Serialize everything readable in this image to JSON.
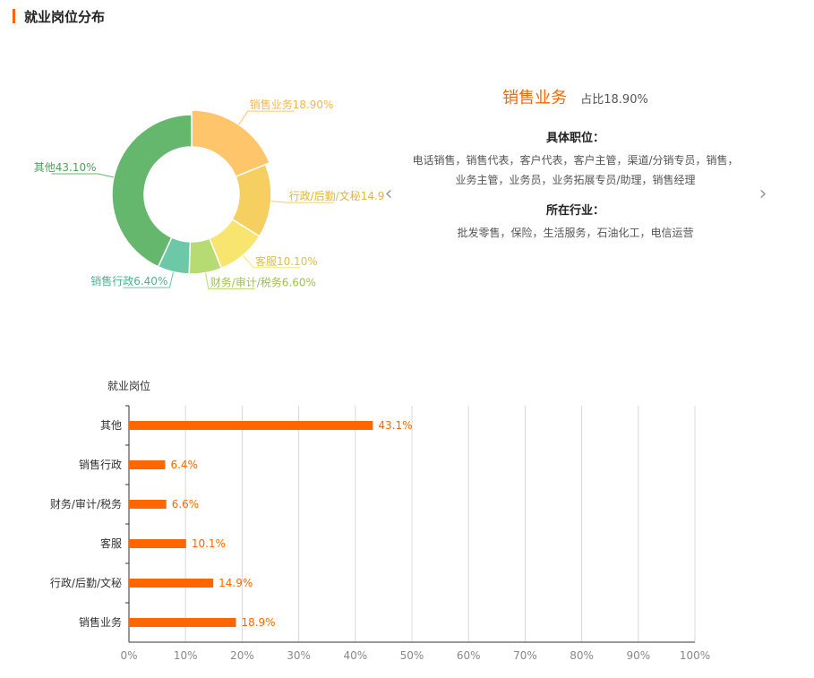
{
  "header": {
    "title": "就业岗位分布"
  },
  "detail": {
    "name": "销售业务",
    "percent_label": "占比18.90%",
    "positions_label": "具体职位：",
    "positions_text": "电话销售，销售代表，客户代表，客户主管，渠道/分销专员，销售，业务主管，业务员，业务拓展专员/助理，销售经理",
    "industries_label": "所在行业：",
    "industries_text": "批发零售，保险，生活服务，石油化工，电信运营"
  },
  "nav": {
    "prev_icon": "chevron-left-icon",
    "next_icon": "chevron-right-icon"
  },
  "chart_data": [
    {
      "type": "pie",
      "variant": "donut",
      "selected": "销售业务",
      "slices": [
        {
          "name": "销售业务",
          "value": 18.9,
          "label": "销售业务18.90%",
          "color": "#ffc56a",
          "label_color": "#f6b64d"
        },
        {
          "name": "行政/后勤/文秘",
          "value": 14.9,
          "label": "行政/后勤/文秘14.9",
          "color": "#f5cf5f",
          "label_color": "#e8b52e"
        },
        {
          "name": "客服",
          "value": 10.1,
          "label": "客服10.10%",
          "color": "#f8e56f",
          "label_color": "#e0c23a"
        },
        {
          "name": "财务/审计/税务",
          "value": 6.6,
          "label": "财务/审计/税务6.60%",
          "color": "#b6db72",
          "label_color": "#9cc24f"
        },
        {
          "name": "销售行政",
          "value": 6.4,
          "label": "销售行政6.40%",
          "color": "#6dc8a7",
          "label_color": "#4fb08d"
        },
        {
          "name": "其他",
          "value": 43.1,
          "label": "其他43.10%",
          "color": "#66b76e",
          "label_color": "#4ea257"
        }
      ]
    },
    {
      "type": "bar",
      "orientation": "horizontal",
      "ylabel": "就业岗位",
      "categories": [
        "其他",
        "销售行政",
        "财务/审计/税务",
        "客服",
        "行政/后勤/文秘",
        "销售业务"
      ],
      "values": [
        43.1,
        6.4,
        6.6,
        10.1,
        14.9,
        18.9
      ],
      "value_labels": [
        "43.1%",
        "6.4%",
        "6.6%",
        "10.1%",
        "14.9%",
        "18.9%"
      ],
      "xlim": [
        0,
        100
      ],
      "x_ticks": [
        "0%",
        "10%",
        "20%",
        "30%",
        "40%",
        "50%",
        "60%",
        "70%",
        "80%",
        "90%",
        "100%"
      ],
      "grid": true,
      "bar_color": "#ff6600"
    }
  ]
}
